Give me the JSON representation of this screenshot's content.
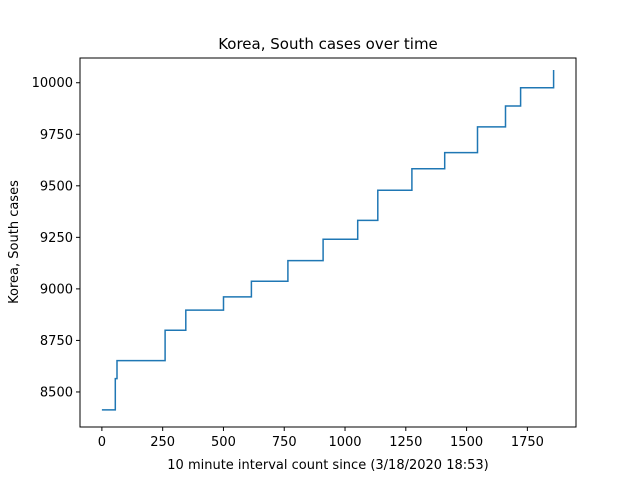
{
  "chart_data": {
    "type": "line",
    "title": "Korea, South cases over time",
    "xlabel": "10 minute interval count since (3/18/2020 18:53)",
    "ylabel": "Korea, South cases",
    "xlim": [
      -90,
      1950
    ],
    "ylim": [
      8330,
      10120
    ],
    "xticks": [
      0,
      250,
      500,
      750,
      1000,
      1250,
      1500,
      1750
    ],
    "yticks": [
      8500,
      8750,
      9000,
      9250,
      9500,
      9750,
      10000
    ],
    "line_color": "#1f77b4",
    "grid": false,
    "legend": "none",
    "series": [
      {
        "step": "post",
        "x": [
          0,
          45,
          55,
          62,
          260,
          345,
          500,
          615,
          765,
          910,
          1050,
          1052,
          1135,
          1275,
          1410,
          1545,
          1660,
          1722,
          1858
        ],
        "y": [
          8413,
          8413,
          8565,
          8652,
          8799,
          8897,
          8961,
          9037,
          9137,
          9241,
          9241,
          9332,
          9478,
          9583,
          9661,
          9786,
          9887,
          9976,
          10062
        ]
      }
    ]
  }
}
